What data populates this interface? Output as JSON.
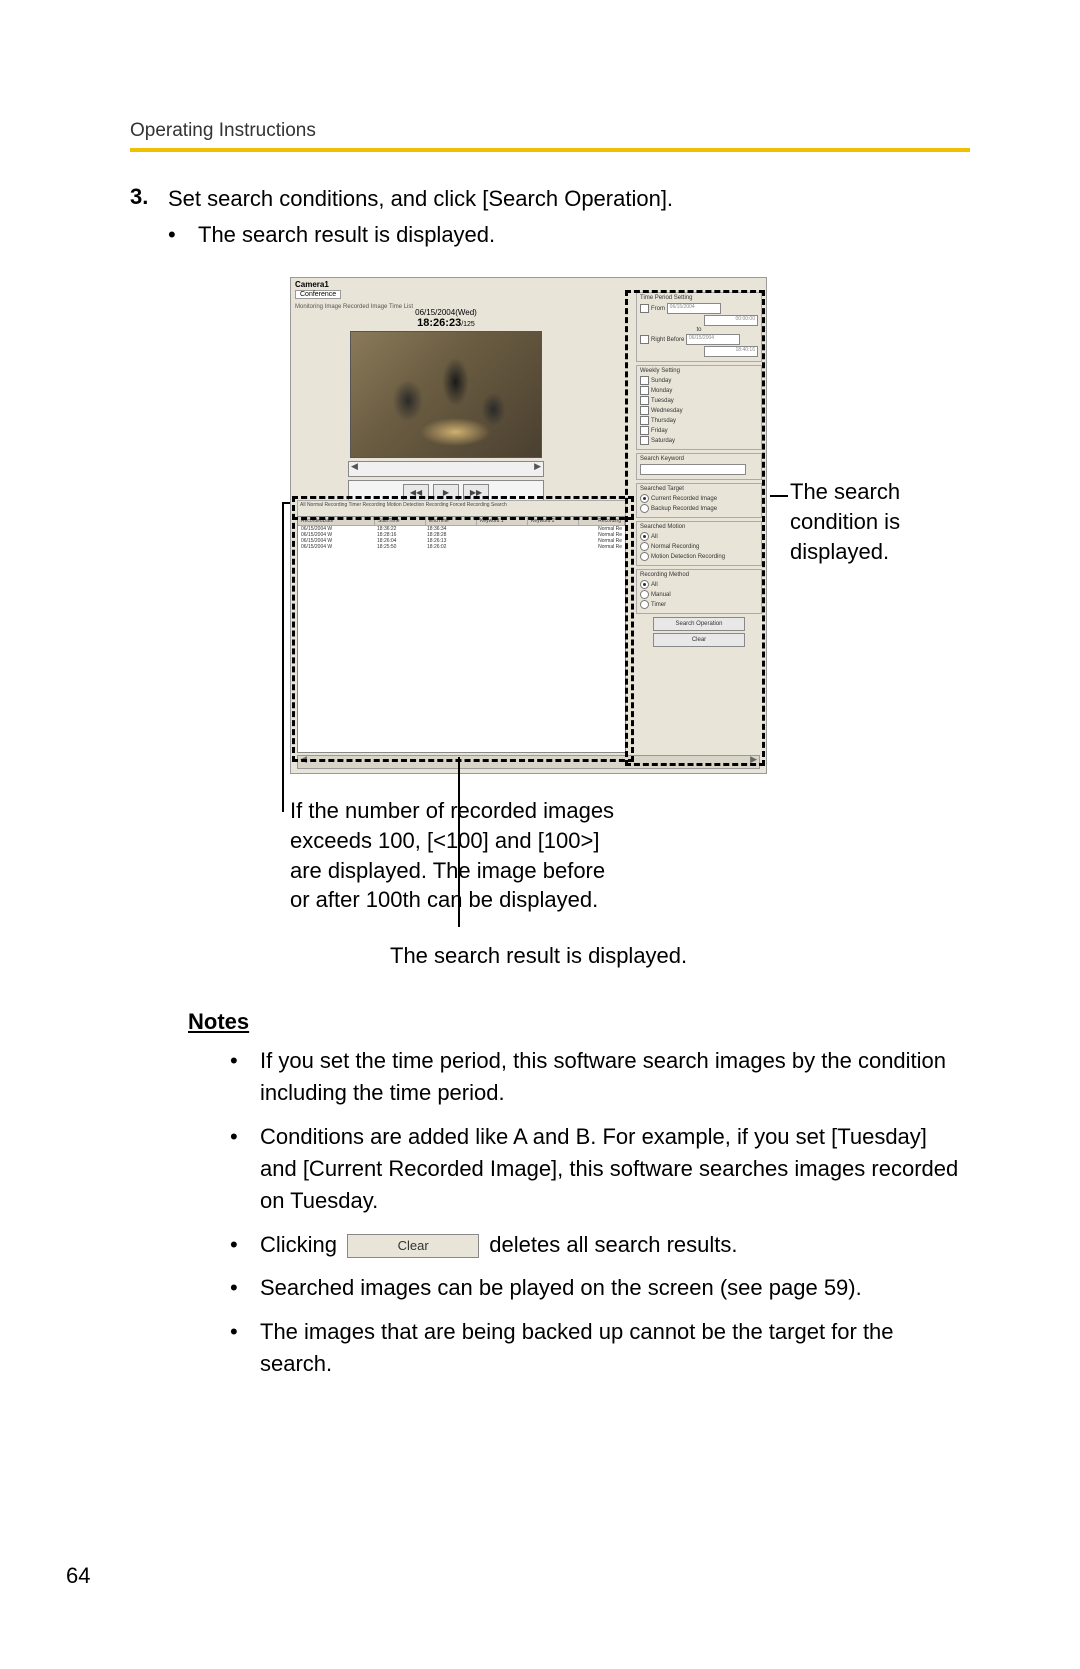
{
  "header": {
    "label": "Operating Instructions"
  },
  "step": {
    "number": "3.",
    "text": "Set search conditions, and click [Search Operation].",
    "sub": "The search result is displayed."
  },
  "screenshot": {
    "camera_title": "Camera1",
    "camera_sub": "Conference",
    "tabs_line": "Monitoring Image  Recorded Image  Time List",
    "date": "06/15/2004(Wed)",
    "time": "18:26:23",
    "time_frac": "/125",
    "results_tabs": "All   Normal Recording   Timer Recording   Motion Detection Recording   Forced Recording   Search",
    "results": {
      "columns": [
        "RecordedDate",
        "StartTime",
        "EndTime",
        "Keyword 1",
        "Keyword 2",
        "Recording"
      ],
      "rows": [
        [
          "06/15/2004 W",
          "18:36:22",
          "18:36:34",
          "",
          "",
          "Normal Re"
        ],
        [
          "06/15/2004 W",
          "18:28:16",
          "18:28:28",
          "",
          "",
          "Normal Re"
        ],
        [
          "06/15/2004 W",
          "18:26:04",
          "18:26:13",
          "",
          "",
          "Normal Re"
        ],
        [
          "06/15/2004 W",
          "18:25:50",
          "18:26:02",
          "",
          "",
          "Normal Re"
        ]
      ]
    },
    "panel": {
      "time_period": {
        "title": "Time Period Setting",
        "from_label": "From",
        "from_date": "06/15/2004",
        "from_time": "00:00:00",
        "to_label": "to",
        "right_before": "Right Before",
        "rb_date": "06/15/2004",
        "rb_time": "18:40:16"
      },
      "weekly": {
        "title": "Weekly Setting",
        "days": [
          "Sunday",
          "Monday",
          "Tuesday",
          "Wednesday",
          "Thursday",
          "Friday",
          "Saturday"
        ]
      },
      "keyword": {
        "title": "Search Keyword"
      },
      "target": {
        "title": "Searched Target",
        "opts": [
          "Current Recorded Image",
          "Backup Recorded Image"
        ]
      },
      "motion": {
        "title": "Searched Motion",
        "opts": [
          "All",
          "Normal Recording",
          "Motion Detection Recording"
        ]
      },
      "method": {
        "title": "Recording Method",
        "opts": [
          "All",
          "Manual",
          "Timer"
        ]
      },
      "search_btn": "Search Operation",
      "clear_btn": "Clear"
    }
  },
  "callouts": {
    "right": "The search condition is displayed.",
    "left": "If the number of recorded images exceeds 100, [<100] and [100>] are displayed. The image before or after 100th can be displayed.",
    "bottom": "The search result is displayed."
  },
  "notes": {
    "heading": "Notes",
    "items": [
      "If you set the time period, this software search images by the condition including the time period.",
      "Conditions are added like A and B. For example, if you set [Tuesday] and [Current Recorded Image], this software searches images recorded on Tuesday.",
      {
        "pre": "Clicking",
        "btn": "Clear",
        "post": " deletes all search results."
      },
      "Searched images can be played on the screen (see page 59).",
      "The images that are being backed up cannot be the target for the search."
    ]
  },
  "page_number": "64"
}
